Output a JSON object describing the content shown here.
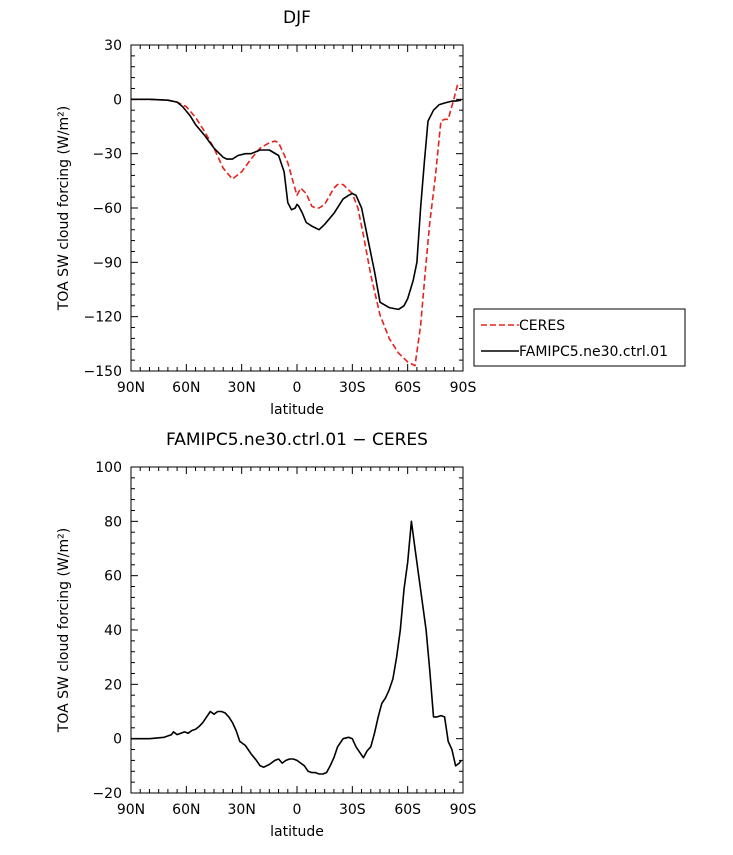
{
  "chart_data": [
    {
      "type": "line",
      "title": "DJF",
      "xlabel": "latitude",
      "ylabel": "TOA SW cloud forcing (W/m²)",
      "ylim": [
        -150,
        30
      ],
      "xlim": [
        90,
        -90
      ],
      "xticks": [
        90,
        60,
        30,
        0,
        -30,
        -60,
        -90
      ],
      "xtick_labels": [
        "90N",
        "60N",
        "30N",
        "0",
        "30S",
        "60S",
        "90S"
      ],
      "yticks": [
        -150,
        -120,
        -90,
        -60,
        -30,
        0,
        30
      ],
      "ytick_labels": [
        "−150",
        "−120",
        "−90",
        "−60",
        "−30",
        "0",
        "30"
      ],
      "legend_position": "right",
      "series": [
        {
          "name": "CERES",
          "color": "#e8221e",
          "dash": "dashed",
          "x": [
            90,
            80,
            70,
            65,
            60,
            55,
            50,
            45,
            40,
            35,
            30,
            25,
            20,
            15,
            12,
            10,
            5,
            2,
            0,
            -2,
            -5,
            -8,
            -10,
            -12,
            -15,
            -20,
            -22,
            -25,
            -30,
            -33,
            -36,
            -40,
            -45,
            -50,
            -55,
            -60,
            -64,
            -67,
            -70,
            -72,
            -75,
            -78,
            -80,
            -82,
            -85,
            -87,
            -89
          ],
          "values": [
            0,
            0,
            -0.5,
            -1.5,
            -4,
            -10,
            -18,
            -27,
            -38,
            -44,
            -40,
            -33,
            -27,
            -24,
            -23,
            -24,
            -35,
            -46,
            -53,
            -49,
            -52,
            -59,
            -60,
            -60,
            -58,
            -49,
            -47,
            -47,
            -52,
            -60,
            -75,
            -97,
            -119,
            -132,
            -140,
            -145,
            -147,
            -125,
            -90,
            -68,
            -43,
            -12,
            -11,
            -11,
            0,
            8,
            8
          ]
        },
        {
          "name": "FAMIPC5.ne30.ctrl.01",
          "color": "#000000",
          "dash": "solid",
          "x": [
            90,
            80,
            70,
            65,
            62,
            58,
            55,
            50,
            45,
            40,
            38,
            35,
            32,
            28,
            25,
            20,
            15,
            10,
            7,
            5,
            3,
            1,
            0,
            -1,
            -3,
            -5,
            -8,
            -12,
            -15,
            -20,
            -25,
            -28,
            -30,
            -32,
            -35,
            -38,
            -42,
            -45,
            -50,
            -55,
            -58,
            -60,
            -63,
            -65,
            -67,
            -69,
            -71,
            -74,
            -77,
            -80,
            -84,
            -86,
            -89
          ],
          "values": [
            0,
            0,
            -0.5,
            -1.5,
            -4,
            -9,
            -14,
            -20,
            -27,
            -32,
            -33,
            -33,
            -31,
            -30,
            -30,
            -28,
            -28,
            -31,
            -40,
            -57,
            -61,
            -60,
            -58,
            -59,
            -63,
            -68,
            -70,
            -72,
            -69,
            -63,
            -55,
            -53,
            -52,
            -53,
            -60,
            -75,
            -95,
            -112,
            -115,
            -116,
            -114,
            -110,
            -100,
            -90,
            -60,
            -35,
            -12,
            -6,
            -3,
            -2,
            -1,
            -1,
            -0.5
          ]
        }
      ]
    },
    {
      "type": "line",
      "title": "FAMIPC5.ne30.ctrl.01  −  CERES",
      "xlabel": "latitude",
      "ylabel": "TOA SW cloud forcing (W/m²)",
      "ylim": [
        -20,
        100
      ],
      "xlim": [
        90,
        -90
      ],
      "xticks": [
        90,
        60,
        30,
        0,
        -30,
        -60,
        -90
      ],
      "xtick_labels": [
        "90N",
        "60N",
        "30N",
        "0",
        "30S",
        "60S",
        "90S"
      ],
      "yticks": [
        -20,
        0,
        20,
        40,
        60,
        80,
        100
      ],
      "ytick_labels": [
        "−20",
        "0",
        "20",
        "40",
        "60",
        "80",
        "100"
      ],
      "series": [
        {
          "color": "#000000",
          "dash": "solid",
          "x": [
            90,
            80,
            72,
            68,
            67,
            66,
            65,
            63,
            61,
            59,
            57,
            55,
            53,
            51,
            49,
            47,
            45,
            43,
            41,
            39,
            37,
            35,
            33,
            31,
            28,
            25,
            22,
            20,
            18,
            15,
            12,
            10,
            8,
            6,
            4,
            2,
            0,
            -2,
            -4,
            -6,
            -8,
            -10,
            -12,
            -14,
            -16,
            -18,
            -20,
            -22,
            -25,
            -28,
            -30,
            -32,
            -34,
            -36,
            -38,
            -40,
            -42,
            -44,
            -46,
            -48,
            -50,
            -52,
            -54,
            -56,
            -58,
            -60,
            -62,
            -64,
            -66,
            -68,
            -70,
            -72,
            -74,
            -76,
            -78,
            -80,
            -82,
            -84,
            -86,
            -88,
            -89
          ],
          "values": [
            0,
            0,
            0.5,
            1.5,
            2.5,
            2,
            1.5,
            2,
            2.5,
            2,
            3,
            3.5,
            4.5,
            6,
            8,
            10,
            9,
            10,
            10,
            9.5,
            8,
            6,
            3,
            -1,
            -2.5,
            -5.5,
            -8,
            -10,
            -10.5,
            -9.5,
            -8,
            -7.5,
            -9,
            -8,
            -7.5,
            -7.5,
            -8,
            -9,
            -10,
            -12,
            -12.5,
            -12.5,
            -13,
            -13,
            -12.5,
            -10,
            -7,
            -3,
            0,
            0.5,
            0,
            -3,
            -5,
            -7,
            -4.5,
            -3,
            2,
            8,
            13,
            15,
            18,
            22,
            30,
            40,
            55,
            65,
            80,
            70,
            60,
            50,
            40,
            25,
            8,
            8,
            8.5,
            8,
            -1,
            -4,
            -10,
            -9,
            -8
          ]
        }
      ]
    }
  ]
}
